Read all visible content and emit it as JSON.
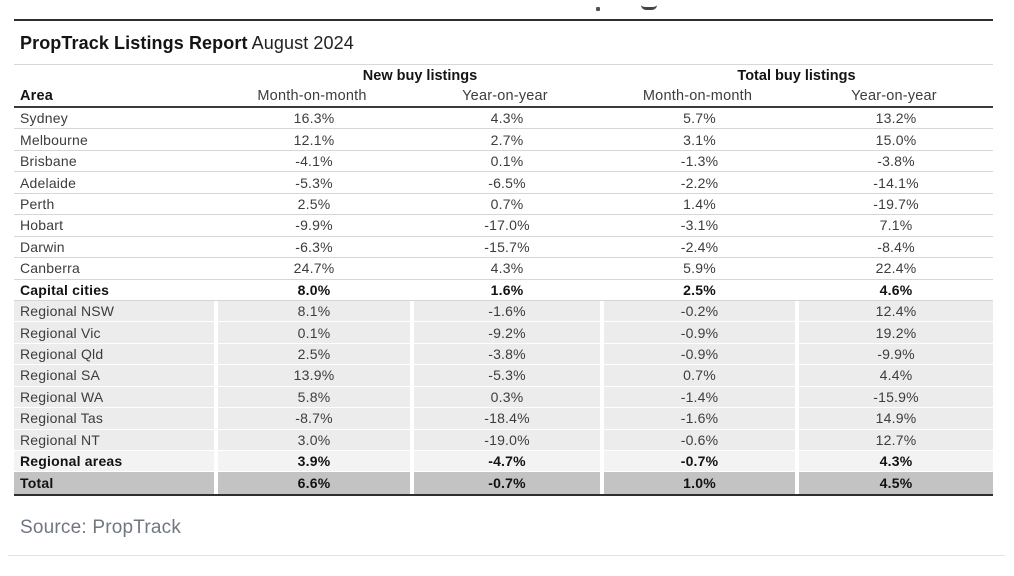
{
  "report": {
    "title_bold": "PropTrack Listings Report",
    "title_period": "August 2024",
    "source_label": "Source: PropTrack"
  },
  "chart_data": {
    "type": "table",
    "title": "PropTrack Listings Report August 2024",
    "group_headers": [
      {
        "label": "New buy listings",
        "spans_columns": [
          1,
          2
        ]
      },
      {
        "label": "Total buy listings",
        "spans_columns": [
          3,
          4
        ]
      }
    ],
    "columns": [
      "Area",
      "Month-on-month",
      "Year-on-year",
      "Month-on-month",
      "Year-on-year"
    ],
    "rows": [
      {
        "area": "Sydney",
        "values": [
          "16.3%",
          "4.3%",
          "5.7%",
          "13.2%"
        ],
        "style": "plain"
      },
      {
        "area": "Melbourne",
        "values": [
          "12.1%",
          "2.7%",
          "3.1%",
          "15.0%"
        ],
        "style": "plain"
      },
      {
        "area": "Brisbane",
        "values": [
          "-4.1%",
          "0.1%",
          "-1.3%",
          "-3.8%"
        ],
        "style": "plain"
      },
      {
        "area": "Adelaide",
        "values": [
          "-5.3%",
          "-6.5%",
          "-2.2%",
          "-14.1%"
        ],
        "style": "plain"
      },
      {
        "area": "Perth",
        "values": [
          "2.5%",
          "0.7%",
          "1.4%",
          "-19.7%"
        ],
        "style": "plain"
      },
      {
        "area": "Hobart",
        "values": [
          "-9.9%",
          "-17.0%",
          "-3.1%",
          "7.1%"
        ],
        "style": "plain"
      },
      {
        "area": "Darwin",
        "values": [
          "-6.3%",
          "-15.7%",
          "-2.4%",
          "-8.4%"
        ],
        "style": "plain"
      },
      {
        "area": "Canberra",
        "values": [
          "24.7%",
          "4.3%",
          "5.9%",
          "22.4%"
        ],
        "style": "plain"
      },
      {
        "area": "Capital cities",
        "values": [
          "8.0%",
          "1.6%",
          "2.5%",
          "4.6%"
        ],
        "style": "bold"
      },
      {
        "area": "Regional NSW",
        "values": [
          "8.1%",
          "-1.6%",
          "-0.2%",
          "12.4%"
        ],
        "style": "shaded"
      },
      {
        "area": "Regional Vic",
        "values": [
          "0.1%",
          "-9.2%",
          "-0.9%",
          "19.2%"
        ],
        "style": "shaded"
      },
      {
        "area": "Regional Qld",
        "values": [
          "2.5%",
          "-3.8%",
          "-0.9%",
          "-9.9%"
        ],
        "style": "shaded"
      },
      {
        "area": "Regional SA",
        "values": [
          "13.9%",
          "-5.3%",
          "0.7%",
          "4.4%"
        ],
        "style": "shaded"
      },
      {
        "area": "Regional WA",
        "values": [
          "5.8%",
          "0.3%",
          "-1.4%",
          "-15.9%"
        ],
        "style": "shaded"
      },
      {
        "area": "Regional Tas",
        "values": [
          "-8.7%",
          "-18.4%",
          "-1.6%",
          "14.9%"
        ],
        "style": "shaded"
      },
      {
        "area": "Regional NT",
        "values": [
          "3.0%",
          "-19.0%",
          "-0.6%",
          "12.7%"
        ],
        "style": "shaded"
      },
      {
        "area": "Regional areas",
        "values": [
          "3.9%",
          "-4.7%",
          "-0.7%",
          "4.3%"
        ],
        "style": "subtotal"
      },
      {
        "area": "Total",
        "values": [
          "6.6%",
          "-0.7%",
          "1.0%",
          "4.5%"
        ],
        "style": "total"
      }
    ]
  },
  "colors": {
    "shaded_row_bg": "#ececec",
    "subtotal_row_bg": "#f3f3f3",
    "total_row_bg": "#c3c3c3",
    "rule_dark": "#2e2e2e",
    "rule_light": "#d8d8d8",
    "source_text": "#717780"
  }
}
